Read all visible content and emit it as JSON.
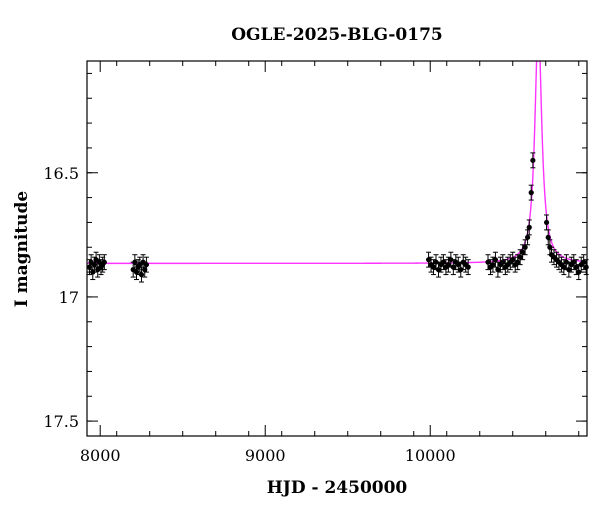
{
  "chart_data": {
    "type": "scatter",
    "title": "OGLE-2025-BLG-0175",
    "xlabel": "HJD - 2450000",
    "ylabel": "I magnitude",
    "xlim": [
      7920,
      10950
    ],
    "ylim": [
      17.56,
      16.05
    ],
    "y_inverted": true,
    "x_ticks_major": [
      8000,
      9000,
      10000
    ],
    "x_tick_labels": [
      "8000",
      "9000",
      "10000"
    ],
    "y_ticks_major": [
      16.5,
      17,
      17.5
    ],
    "y_tick_labels": [
      "16.5",
      "17",
      "17.5"
    ],
    "grid": false,
    "legend": "none",
    "colors": {
      "points": "#000000",
      "model": "#ff33ff"
    },
    "model": {
      "name": "",
      "baseline_mag": 16.865,
      "peak_time": 10655,
      "peak_mag": 15.9,
      "half_width_days": 25
    },
    "series": [
      {
        "name": "",
        "x": [
          7935,
          7945,
          7955,
          7965,
          7975,
          7985,
          7995,
          8005,
          8015,
          8025,
          8200,
          8210,
          8220,
          8230,
          8240,
          8250,
          8260,
          8270,
          8280,
          9990,
          10005,
          10020,
          10035,
          10050,
          10065,
          10080,
          10095,
          10110,
          10125,
          10140,
          10155,
          10170,
          10185,
          10200,
          10215,
          10230,
          10350,
          10365,
          10380,
          10395,
          10410,
          10425,
          10440,
          10455,
          10470,
          10485,
          10500,
          10515,
          10530,
          10545,
          10560,
          10575,
          10590,
          10600,
          10612,
          10622,
          10705,
          10715,
          10725,
          10735,
          10750,
          10765,
          10780,
          10795,
          10810,
          10825,
          10840,
          10855,
          10870,
          10885,
          10900,
          10915,
          10930,
          10945
        ],
        "y": [
          16.88,
          16.86,
          16.9,
          16.87,
          16.85,
          16.89,
          16.86,
          16.88,
          16.87,
          16.86,
          16.89,
          16.86,
          16.9,
          16.88,
          16.87,
          16.91,
          16.86,
          16.89,
          16.87,
          16.85,
          16.87,
          16.88,
          16.86,
          16.89,
          16.87,
          16.86,
          16.88,
          16.87,
          16.85,
          16.88,
          16.86,
          16.87,
          16.89,
          16.86,
          16.87,
          16.88,
          16.86,
          16.88,
          16.87,
          16.85,
          16.89,
          16.87,
          16.86,
          16.88,
          16.87,
          16.86,
          16.85,
          16.87,
          16.86,
          16.84,
          16.82,
          16.8,
          16.76,
          16.72,
          16.58,
          16.45,
          16.7,
          16.76,
          16.8,
          16.83,
          16.84,
          16.85,
          16.86,
          16.87,
          16.88,
          16.86,
          16.89,
          16.87,
          16.86,
          16.88,
          16.9,
          16.87,
          16.86,
          16.88
        ],
        "err": [
          0.03,
          0.03,
          0.03,
          0.03,
          0.03,
          0.03,
          0.03,
          0.03,
          0.03,
          0.03,
          0.03,
          0.03,
          0.03,
          0.03,
          0.03,
          0.03,
          0.03,
          0.03,
          0.03,
          0.03,
          0.03,
          0.03,
          0.03,
          0.03,
          0.03,
          0.03,
          0.03,
          0.03,
          0.03,
          0.03,
          0.03,
          0.03,
          0.03,
          0.03,
          0.03,
          0.03,
          0.03,
          0.03,
          0.03,
          0.03,
          0.03,
          0.03,
          0.03,
          0.03,
          0.03,
          0.03,
          0.03,
          0.03,
          0.03,
          0.03,
          0.03,
          0.03,
          0.03,
          0.03,
          0.03,
          0.03,
          0.03,
          0.03,
          0.03,
          0.03,
          0.03,
          0.03,
          0.03,
          0.03,
          0.03,
          0.03,
          0.03,
          0.03,
          0.03,
          0.03,
          0.03,
          0.03,
          0.03,
          0.03
        ]
      }
    ]
  }
}
